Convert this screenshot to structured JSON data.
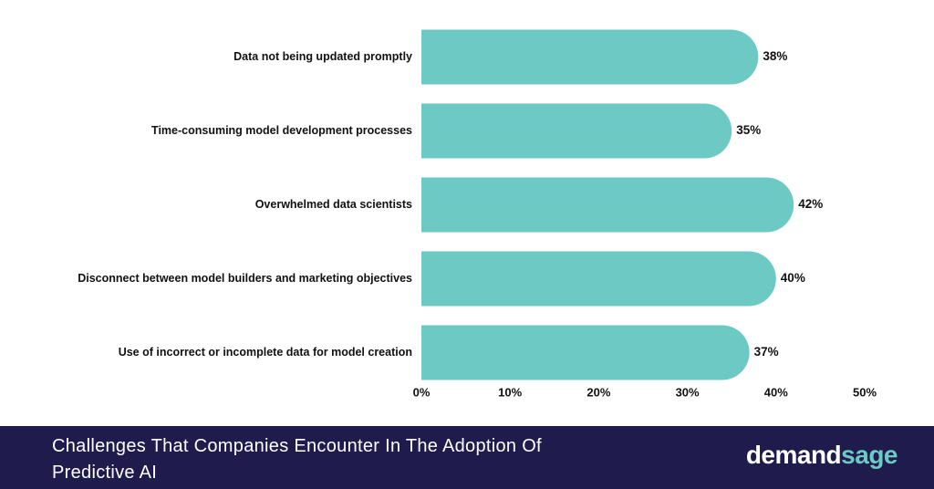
{
  "chart_data": {
    "type": "bar",
    "orientation": "horizontal",
    "title": "Challenges That Companies Encounter In The Adoption Of Predictive AI",
    "categories": [
      "Data not being updated promptly",
      "Time-consuming model development processes",
      "Overwhelmed data scientists",
      "Disconnect between model builders and marketing objectives",
      "Use of incorrect or incomplete data for model creation"
    ],
    "values": [
      38,
      35,
      42,
      40,
      37
    ],
    "value_labels": [
      "38%",
      "35%",
      "42%",
      "40%",
      "37%"
    ],
    "color": "#6cc9c3",
    "xlim": [
      0,
      50
    ],
    "xticks": [
      {
        "value": 0,
        "label": "0%"
      },
      {
        "value": 10,
        "label": "10%"
      },
      {
        "value": 20,
        "label": "20%"
      },
      {
        "value": 30,
        "label": "30%"
      },
      {
        "value": 40,
        "label": "40%"
      },
      {
        "value": 50,
        "label": "50%"
      }
    ],
    "grid": false
  },
  "footer": {
    "brand": [
      "demand",
      "sage"
    ]
  }
}
